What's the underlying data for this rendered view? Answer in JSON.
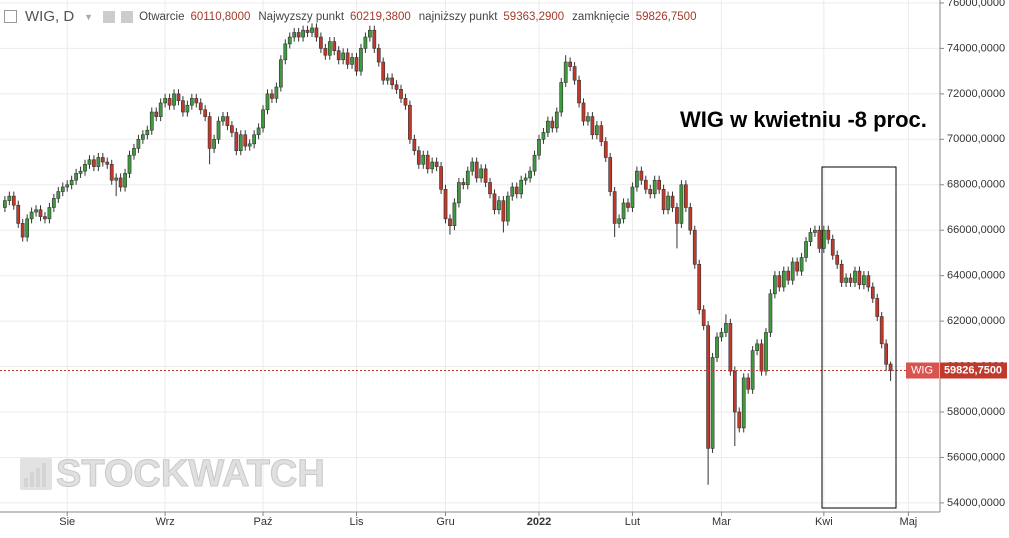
{
  "chart_data": {
    "type": "candlestick",
    "symbol": "WIG, D",
    "ohlc_labels": [
      "Otwarcie",
      "Najwyzszy punkt",
      "najniższy punkt",
      "zamknięcie"
    ],
    "ohlc_value_labels": [
      "60110,8000",
      "60219,3800",
      "59363,2900",
      "59826,7500"
    ],
    "annotation": "WIG w kwietniu -8 proc.",
    "watermark": "STOCKWATCH",
    "price_tag": {
      "name": "WIG",
      "label": "59826,7500"
    },
    "up_color": "#3f9a3f",
    "down_color": "#c0392b",
    "ylim": [
      53600,
      76130
    ],
    "yticks": [
      {
        "value": 54000,
        "label": "54000,0000"
      },
      {
        "value": 56000,
        "label": "56000,0000"
      },
      {
        "value": 58000,
        "label": "58000,0000"
      },
      {
        "value": 60000,
        "label": "60000,0000"
      },
      {
        "value": 62000,
        "label": "62000,0000"
      },
      {
        "value": 64000,
        "label": "64000,0000"
      },
      {
        "value": 66000,
        "label": "66000,0000"
      },
      {
        "value": 68000,
        "label": "68000,0000"
      },
      {
        "value": 70000,
        "label": "70000,0000"
      },
      {
        "value": 72000,
        "label": "72000,0000"
      },
      {
        "value": 74000,
        "label": "74000,0000"
      },
      {
        "value": 76000,
        "label": "76000,0000"
      }
    ],
    "xlim": [
      -1.1,
      210.1
    ],
    "xticks": [
      {
        "value": 14,
        "label": "Sie"
      },
      {
        "value": 36,
        "label": "Wrz"
      },
      {
        "value": 58,
        "label": "Paź"
      },
      {
        "value": 79,
        "label": "Lis"
      },
      {
        "value": 99,
        "label": "Gru"
      },
      {
        "value": 120,
        "label": "2022"
      },
      {
        "value": 141,
        "label": "Lut"
      },
      {
        "value": 161,
        "label": "Mar"
      },
      {
        "value": 184,
        "label": "Kwi"
      },
      {
        "value": 203,
        "label": "Maj"
      }
    ],
    "grid": true,
    "open": [
      67000,
      67300,
      67500,
      67100,
      66300,
      65700,
      66500,
      66800,
      66900,
      66600,
      66500,
      67000,
      67400,
      67700,
      67900,
      68000,
      68200,
      68500,
      68600,
      68900,
      69100,
      68800,
      69200,
      69000,
      68900,
      68200,
      68300,
      67900,
      68500,
      69300,
      69600,
      70000,
      70200,
      70400,
      71200,
      71000,
      71600,
      71800,
      71500,
      72000,
      71700,
      71200,
      71500,
      71800,
      71600,
      71300,
      71000,
      69600,
      70000,
      70800,
      71000,
      70600,
      70300,
      69500,
      70200,
      69700,
      69800,
      70200,
      70500,
      71300,
      72000,
      71800,
      72300,
      73500,
      74200,
      74500,
      74700,
      74500,
      74800,
      74700,
      74900,
      74500,
      74000,
      73700,
      74300,
      73900,
      73500,
      73800,
      73300,
      73600,
      73000,
      74000,
      74500,
      74800,
      74000,
      73400,
      72600,
      72700,
      72400,
      72200,
      71800,
      71500,
      70000,
      69500,
      68900,
      69300,
      68700,
      69000,
      68800,
      67800,
      66500,
      66200,
      67200,
      68100,
      68000,
      68600,
      69000,
      68300,
      68700,
      68100,
      67600,
      66900,
      67300,
      66400,
      67500,
      67900,
      67600,
      68200,
      68300,
      68600,
      69300,
      70000,
      70300,
      70800,
      70500,
      71200,
      72500,
      73400,
      73200,
      72600,
      71600,
      70800,
      71000,
      70200,
      70600,
      69900,
      69200,
      67700,
      66300,
      66500,
      67200,
      67000,
      67900,
      68600,
      68200,
      67800,
      67600,
      68200,
      67800,
      66900,
      67500,
      67000,
      66300,
      68000,
      67000,
      66000,
      64500,
      62500,
      61800,
      56400,
      60400,
      61300,
      61500,
      61900,
      59800,
      58000,
      57300,
      59500,
      59000,
      60700,
      61000,
      59800,
      61500,
      63200,
      64000,
      63500,
      64200,
      63800,
      64600,
      64200,
      64800,
      65500,
      65900,
      66000,
      65200,
      66000,
      65600,
      64900,
      64500,
      63700,
      63900,
      63700,
      64200,
      63600,
      64000,
      63500,
      63000,
      62200,
      61000,
      60110.8
    ],
    "high": [
      67500,
      67700,
      67700,
      67300,
      66500,
      66700,
      67000,
      67100,
      67100,
      66800,
      67200,
      67600,
      67900,
      68100,
      68200,
      68400,
      68700,
      68800,
      69100,
      69300,
      69300,
      69400,
      69400,
      69200,
      69100,
      68500,
      68500,
      68700,
      69500,
      69800,
      70200,
      70400,
      70600,
      71400,
      71400,
      71800,
      72000,
      72000,
      72200,
      72200,
      71900,
      71700,
      72000,
      72000,
      71800,
      71500,
      71200,
      70200,
      71000,
      71200,
      71200,
      70800,
      70500,
      70400,
      70400,
      70000,
      70400,
      70700,
      71500,
      72200,
      72200,
      72500,
      73700,
      74400,
      74700,
      74900,
      74900,
      75000,
      75000,
      75100,
      75100,
      74700,
      74200,
      74500,
      74500,
      74100,
      74000,
      74000,
      73800,
      73800,
      74200,
      74700,
      75000,
      75000,
      74200,
      73600,
      72900,
      72900,
      72600,
      72400,
      72000,
      71700,
      70200,
      69700,
      69500,
      69500,
      69200,
      69200,
      69000,
      68000,
      66700,
      67400,
      68300,
      68300,
      68800,
      69200,
      69200,
      68900,
      68900,
      68300,
      67800,
      67500,
      67500,
      67700,
      68100,
      68100,
      68400,
      68500,
      68800,
      69500,
      70200,
      70500,
      71000,
      71000,
      71400,
      72700,
      73700,
      73600,
      73400,
      72800,
      71800,
      71200,
      71200,
      70800,
      70800,
      70100,
      69400,
      67900,
      66700,
      67400,
      67400,
      68100,
      68800,
      68800,
      68400,
      68000,
      68400,
      68400,
      68000,
      67700,
      67700,
      67200,
      68200,
      68200,
      67200,
      66200,
      64700,
      62700,
      62000,
      60600,
      61500,
      61700,
      62300,
      62100,
      60000,
      58200,
      59700,
      59700,
      60900,
      61200,
      61200,
      61700,
      63400,
      64200,
      64200,
      64400,
      64400,
      64800,
      64800,
      65000,
      65700,
      66100,
      66200,
      66200,
      66200,
      66200,
      65800,
      65100,
      64700,
      64100,
      64100,
      64400,
      64400,
      64200,
      64200,
      63700,
      63200,
      62400,
      61200,
      60219.38
    ],
    "low": [
      66800,
      67100,
      66900,
      66100,
      65500,
      65500,
      66300,
      66600,
      66400,
      66300,
      66300,
      66800,
      67200,
      67500,
      67700,
      67800,
      68000,
      68300,
      68400,
      68700,
      68600,
      68600,
      68800,
      68700,
      68000,
      67500,
      67700,
      67700,
      68300,
      69100,
      69400,
      69800,
      70000,
      70200,
      70800,
      70800,
      71400,
      71300,
      71300,
      71500,
      71000,
      71000,
      71300,
      71400,
      71100,
      70800,
      68900,
      69400,
      69800,
      70600,
      70400,
      70100,
      69300,
      69300,
      69500,
      69500,
      69600,
      70000,
      70300,
      71100,
      71600,
      71600,
      72100,
      73300,
      74000,
      74300,
      74300,
      74300,
      74500,
      74500,
      74300,
      73800,
      73500,
      73500,
      73700,
      73300,
      73300,
      73100,
      73100,
      72800,
      72800,
      73800,
      74300,
      73800,
      73200,
      72400,
      72400,
      72200,
      72000,
      71600,
      71300,
      69800,
      69300,
      68700,
      68700,
      68500,
      68500,
      68600,
      67600,
      66300,
      65800,
      66000,
      67000,
      67800,
      67800,
      68400,
      68100,
      68100,
      67900,
      67400,
      66700,
      66700,
      65900,
      66200,
      67300,
      67400,
      67400,
      68000,
      68100,
      68400,
      69100,
      69800,
      70100,
      70300,
      70300,
      71000,
      72300,
      73000,
      72400,
      71400,
      70600,
      70600,
      70000,
      70000,
      69700,
      69000,
      67500,
      65700,
      66100,
      66300,
      66800,
      66800,
      67700,
      68000,
      67600,
      67400,
      67400,
      67600,
      66700,
      66700,
      66800,
      65200,
      66100,
      66800,
      65800,
      64300,
      62300,
      61600,
      54800,
      56200,
      60200,
      61100,
      61300,
      59600,
      56500,
      57100,
      57100,
      58800,
      58800,
      60500,
      59600,
      59600,
      61300,
      63000,
      63300,
      63300,
      63600,
      63600,
      64000,
      64000,
      64600,
      65300,
      65700,
      65000,
      65000,
      65400,
      64700,
      64300,
      63500,
      63500,
      63500,
      63500,
      63400,
      63400,
      63300,
      62800,
      62000,
      60800,
      59800,
      59363.29
    ],
    "close": [
      67300,
      67500,
      67100,
      66300,
      65700,
      66500,
      66800,
      66900,
      66600,
      66500,
      67000,
      67400,
      67700,
      67900,
      68000,
      68200,
      68500,
      68600,
      68900,
      69100,
      68800,
      69200,
      69000,
      68900,
      68200,
      68300,
      67900,
      68500,
      69300,
      69600,
      70000,
      70200,
      70400,
      71200,
      71000,
      71600,
      71800,
      71500,
      72000,
      71700,
      71200,
      71500,
      71800,
      71600,
      71300,
      71000,
      69600,
      70000,
      70800,
      71000,
      70600,
      70300,
      69500,
      70200,
      69700,
      69800,
      70200,
      70500,
      71300,
      72000,
      71800,
      72300,
      73500,
      74200,
      74500,
      74700,
      74500,
      74800,
      74700,
      74900,
      74500,
      74000,
      73700,
      74300,
      73900,
      73500,
      73800,
      73300,
      73600,
      73000,
      74000,
      74500,
      74800,
      74000,
      73400,
      72600,
      72700,
      72400,
      72200,
      71800,
      71500,
      70000,
      69500,
      68900,
      69300,
      68700,
      69000,
      68800,
      67800,
      66500,
      66200,
      67200,
      68100,
      68000,
      68600,
      69000,
      68300,
      68700,
      68100,
      67600,
      66900,
      67300,
      66400,
      67500,
      67900,
      67600,
      68200,
      68300,
      68600,
      69300,
      70000,
      70300,
      70800,
      70500,
      71200,
      72500,
      73400,
      73200,
      72600,
      71600,
      70800,
      71000,
      70200,
      70600,
      69900,
      69200,
      67700,
      66300,
      66500,
      67200,
      67000,
      67900,
      68600,
      68200,
      67800,
      67600,
      68200,
      67800,
      66900,
      67500,
      67000,
      66300,
      68000,
      67000,
      66000,
      64500,
      62500,
      61800,
      56400,
      60400,
      61300,
      61500,
      61900,
      59800,
      58000,
      57300,
      59500,
      59000,
      60700,
      61000,
      59800,
      61500,
      63200,
      64000,
      63500,
      64200,
      63800,
      64600,
      64200,
      64800,
      65500,
      65900,
      66000,
      65200,
      66000,
      65600,
      64900,
      64500,
      63700,
      63900,
      63700,
      64200,
      63600,
      64000,
      63500,
      63000,
      62200,
      61000,
      60100,
      59826.75
    ]
  }
}
